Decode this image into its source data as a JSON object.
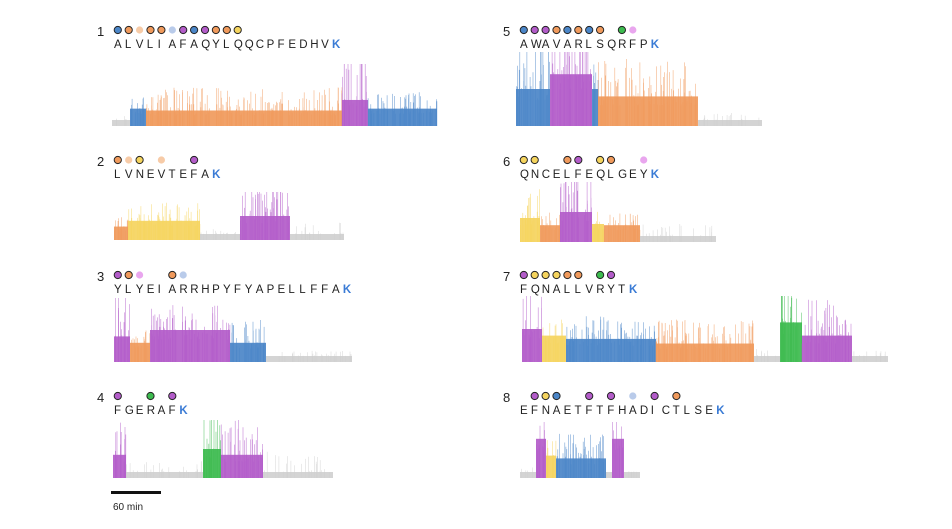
{
  "colors": {
    "orange": "#f09a5c",
    "purple": "#b35cc9",
    "blue": "#4b86c8",
    "yellow": "#f5d45e",
    "green": "#3dbb4f",
    "gray": "#cfcfcf",
    "light_purple": "#e9a6ee",
    "light_blue": "#b9cbea",
    "light_orange": "#f7cba7",
    "lys": "#3a7bd5"
  },
  "scale_bar": {
    "label": "60 min"
  },
  "chart_data": [
    {
      "type": "area",
      "panel": "1",
      "sequence": [
        "A",
        "L",
        "V",
        "L",
        "I",
        "A",
        "F",
        "A",
        "Q",
        "Y",
        "L",
        "Q",
        "Q",
        "C",
        "P",
        "F",
        "E",
        "D",
        "H",
        "V",
        "K"
      ],
      "markers": [
        {
          "residue": 0,
          "color": "blue",
          "outline": true
        },
        {
          "residue": 1,
          "color": "orange",
          "outline": true
        },
        {
          "residue": 2,
          "color": "light_orange",
          "outline": false
        },
        {
          "residue": 3,
          "color": "orange",
          "outline": true
        },
        {
          "residue": 4,
          "color": "orange",
          "outline": true
        },
        {
          "residue": 5,
          "color": "light_blue",
          "outline": false
        },
        {
          "residue": 6,
          "color": "purple",
          "outline": true
        },
        {
          "residue": 7,
          "color": "blue",
          "outline": true
        },
        {
          "residue": 8,
          "color": "purple",
          "outline": true
        },
        {
          "residue": 9,
          "color": "orange",
          "outline": true
        },
        {
          "residue": 10,
          "color": "orange",
          "outline": true
        },
        {
          "residue": 11,
          "color": "yellow",
          "outline": true
        }
      ],
      "segments": [
        {
          "start": 0,
          "end": 18,
          "color": "gray",
          "level": 0.12,
          "spikes": 0.1
        },
        {
          "start": 18,
          "end": 34,
          "color": "blue",
          "level": 0.28,
          "spikes": 0.3
        },
        {
          "start": 34,
          "end": 230,
          "color": "orange",
          "level": 0.25,
          "spikes": 0.45
        },
        {
          "start": 230,
          "end": 256,
          "color": "purple",
          "level": 0.42,
          "spikes": 1.0
        },
        {
          "start": 256,
          "end": 325,
          "color": "blue",
          "level": 0.28,
          "spikes": 0.35
        }
      ]
    },
    {
      "type": "area",
      "panel": "2",
      "sequence": [
        "L",
        "V",
        "N",
        "E",
        "V",
        "T",
        "E",
        "F",
        "A",
        "K"
      ],
      "markers": [
        {
          "residue": 0,
          "color": "orange",
          "outline": true
        },
        {
          "residue": 1,
          "color": "light_orange",
          "outline": false
        },
        {
          "residue": 2,
          "color": "yellow",
          "outline": true
        },
        {
          "residue": 4,
          "color": "light_orange",
          "outline": false
        },
        {
          "residue": 7,
          "color": "purple",
          "outline": true
        }
      ],
      "segments": [
        {
          "start": 0,
          "end": 14,
          "color": "orange",
          "level": 0.28,
          "spikes": 0.3
        },
        {
          "start": 14,
          "end": 86,
          "color": "yellow",
          "level": 0.4,
          "spikes": 0.5
        },
        {
          "start": 86,
          "end": 126,
          "color": "gray",
          "level": 0.12,
          "spikes": 0.1
        },
        {
          "start": 126,
          "end": 176,
          "color": "purple",
          "level": 0.5,
          "spikes": 1.0
        },
        {
          "start": 176,
          "end": 230,
          "color": "gray",
          "level": 0.12,
          "spikes": 0.25
        }
      ]
    },
    {
      "type": "area",
      "panel": "3",
      "sequence": [
        "Y",
        "L",
        "Y",
        "E",
        "I",
        "A",
        "R",
        "R",
        "H",
        "P",
        "Y",
        "F",
        "Y",
        "A",
        "P",
        "E",
        "L",
        "L",
        "F",
        "F",
        "A",
        "K"
      ],
      "markers": [
        {
          "residue": 0,
          "color": "purple",
          "outline": true
        },
        {
          "residue": 1,
          "color": "orange",
          "outline": true
        },
        {
          "residue": 2,
          "color": "light_purple",
          "outline": false
        },
        {
          "residue": 5,
          "color": "orange",
          "outline": true
        },
        {
          "residue": 6,
          "color": "light_blue",
          "outline": false
        }
      ],
      "segments": [
        {
          "start": 0,
          "end": 16,
          "color": "purple",
          "level": 0.4,
          "spikes": 1.0
        },
        {
          "start": 16,
          "end": 36,
          "color": "orange",
          "level": 0.3,
          "spikes": 0.3
        },
        {
          "start": 36,
          "end": 116,
          "color": "purple",
          "level": 0.5,
          "spikes": 0.55
        },
        {
          "start": 116,
          "end": 152,
          "color": "blue",
          "level": 0.3,
          "spikes": 0.45
        },
        {
          "start": 152,
          "end": 238,
          "color": "gray",
          "level": 0.1,
          "spikes": 0.08
        }
      ]
    },
    {
      "type": "area",
      "panel": "4",
      "sequence": [
        "F",
        "G",
        "E",
        "R",
        "A",
        "F",
        "K"
      ],
      "markers": [
        {
          "residue": 0,
          "color": "purple",
          "outline": true
        },
        {
          "residue": 3,
          "color": "green",
          "outline": true
        },
        {
          "residue": 5,
          "color": "purple",
          "outline": true
        }
      ],
      "segments": [
        {
          "start": 0,
          "end": 13,
          "color": "purple",
          "level": 0.4,
          "spikes": 0.7
        },
        {
          "start": 13,
          "end": 90,
          "color": "gray",
          "level": 0.1,
          "spikes": 0.2
        },
        {
          "start": 90,
          "end": 108,
          "color": "green",
          "level": 0.5,
          "spikes": 1.0
        },
        {
          "start": 108,
          "end": 150,
          "color": "purple",
          "level": 0.4,
          "spikes": 0.75
        },
        {
          "start": 150,
          "end": 220,
          "color": "gray",
          "level": 0.1,
          "spikes": 0.35
        }
      ]
    },
    {
      "type": "area",
      "panel": "5",
      "sequence": [
        "A",
        "W",
        "A",
        "V",
        "A",
        "R",
        "L",
        "S",
        "Q",
        "R",
        "F",
        "P",
        "K"
      ],
      "markers": [
        {
          "residue": 0,
          "color": "blue",
          "outline": true
        },
        {
          "residue": 1,
          "color": "purple",
          "outline": true
        },
        {
          "residue": 2,
          "color": "purple",
          "outline": true
        },
        {
          "residue": 3,
          "color": "orange",
          "outline": true
        },
        {
          "residue": 4,
          "color": "blue",
          "outline": true
        },
        {
          "residue": 5,
          "color": "orange",
          "outline": true
        },
        {
          "residue": 6,
          "color": "blue",
          "outline": true
        },
        {
          "residue": 7,
          "color": "orange",
          "outline": true
        },
        {
          "residue": 9,
          "color": "green",
          "outline": true
        },
        {
          "residue": 10,
          "color": "light_purple",
          "outline": false
        }
      ],
      "segments": [
        {
          "start": 0,
          "end": 34,
          "color": "blue",
          "level": 0.5,
          "spikes": 1.0
        },
        {
          "start": 34,
          "end": 76,
          "color": "purple",
          "level": 0.7,
          "spikes": 1.0
        },
        {
          "start": 76,
          "end": 82,
          "color": "blue",
          "level": 0.5,
          "spikes": 0.6
        },
        {
          "start": 82,
          "end": 182,
          "color": "orange",
          "level": 0.4,
          "spikes": 0.65
        },
        {
          "start": 182,
          "end": 246,
          "color": "gray",
          "level": 0.14,
          "spikes": 0.1
        }
      ]
    },
    {
      "type": "area",
      "panel": "6",
      "sequence": [
        "Q",
        "N",
        "C",
        "E",
        "L",
        "F",
        "E",
        "Q",
        "L",
        "G",
        "E",
        "Y",
        "K"
      ],
      "markers": [
        {
          "residue": 0,
          "color": "yellow",
          "outline": true
        },
        {
          "residue": 1,
          "color": "yellow",
          "outline": true
        },
        {
          "residue": 4,
          "color": "orange",
          "outline": true
        },
        {
          "residue": 5,
          "color": "purple",
          "outline": true
        },
        {
          "residue": 7,
          "color": "yellow",
          "outline": true
        },
        {
          "residue": 8,
          "color": "orange",
          "outline": true
        },
        {
          "residue": 11,
          "color": "light_purple",
          "outline": false
        }
      ],
      "segments": [
        {
          "start": 0,
          "end": 20,
          "color": "yellow",
          "level": 0.4,
          "spikes": 0.6
        },
        {
          "start": 20,
          "end": 40,
          "color": "orange",
          "level": 0.28,
          "spikes": 0.3
        },
        {
          "start": 40,
          "end": 72,
          "color": "purple",
          "level": 0.5,
          "spikes": 1.0
        },
        {
          "start": 72,
          "end": 84,
          "color": "yellow",
          "level": 0.3,
          "spikes": 0.3
        },
        {
          "start": 84,
          "end": 120,
          "color": "orange",
          "level": 0.28,
          "spikes": 0.3
        },
        {
          "start": 120,
          "end": 196,
          "color": "gray",
          "level": 0.12,
          "spikes": 0.2
        }
      ]
    },
    {
      "type": "area",
      "panel": "7",
      "sequence": [
        "F",
        "Q",
        "N",
        "A",
        "L",
        "L",
        "V",
        "R",
        "Y",
        "T",
        "K"
      ],
      "markers": [
        {
          "residue": 0,
          "color": "purple",
          "outline": true
        },
        {
          "residue": 1,
          "color": "yellow",
          "outline": true
        },
        {
          "residue": 2,
          "color": "yellow",
          "outline": true
        },
        {
          "residue": 3,
          "color": "yellow",
          "outline": true
        },
        {
          "residue": 4,
          "color": "orange",
          "outline": true
        },
        {
          "residue": 5,
          "color": "orange",
          "outline": true
        },
        {
          "residue": 7,
          "color": "green",
          "outline": true
        },
        {
          "residue": 8,
          "color": "purple",
          "outline": true
        }
      ],
      "segments": [
        {
          "start": 0,
          "end": 20,
          "color": "purple",
          "level": 0.5,
          "spikes": 0.75
        },
        {
          "start": 20,
          "end": 44,
          "color": "yellow",
          "level": 0.4,
          "spikes": 0.4
        },
        {
          "start": 44,
          "end": 134,
          "color": "blue",
          "level": 0.35,
          "spikes": 0.45
        },
        {
          "start": 134,
          "end": 232,
          "color": "orange",
          "level": 0.28,
          "spikes": 0.45
        },
        {
          "start": 232,
          "end": 258,
          "color": "gray",
          "level": 0.12,
          "spikes": 0.15
        },
        {
          "start": 258,
          "end": 280,
          "color": "green",
          "level": 0.6,
          "spikes": 1.0
        },
        {
          "start": 280,
          "end": 330,
          "color": "purple",
          "level": 0.4,
          "spikes": 0.7
        },
        {
          "start": 330,
          "end": 366,
          "color": "gray",
          "level": 0.12,
          "spikes": 0.1
        }
      ]
    },
    {
      "type": "area",
      "panel": "8",
      "sequence": [
        "E",
        "F",
        "N",
        "A",
        "E",
        "T",
        "F",
        "T",
        "F",
        "H",
        "A",
        "D",
        "I",
        "C",
        "T",
        "L",
        "S",
        "E",
        "K"
      ],
      "markers": [
        {
          "residue": 1,
          "color": "purple",
          "outline": true
        },
        {
          "residue": 2,
          "color": "yellow",
          "outline": true
        },
        {
          "residue": 3,
          "color": "blue",
          "outline": true
        },
        {
          "residue": 6,
          "color": "purple",
          "outline": true
        },
        {
          "residue": 8,
          "color": "purple",
          "outline": true
        },
        {
          "residue": 10,
          "color": "light_blue",
          "outline": false
        },
        {
          "residue": 12,
          "color": "purple",
          "outline": true
        },
        {
          "residue": 14,
          "color": "orange",
          "outline": true
        }
      ],
      "segments": [
        {
          "start": 0,
          "end": 16,
          "color": "gray",
          "level": 0.12,
          "spikes": 0.1
        },
        {
          "start": 16,
          "end": 26,
          "color": "purple",
          "level": 0.7,
          "spikes": 0.85
        },
        {
          "start": 26,
          "end": 36,
          "color": "yellow",
          "level": 0.4,
          "spikes": 0.4
        },
        {
          "start": 36,
          "end": 86,
          "color": "blue",
          "level": 0.35,
          "spikes": 0.55
        },
        {
          "start": 86,
          "end": 92,
          "color": "gray",
          "level": 0.12,
          "spikes": 0.1
        },
        {
          "start": 92,
          "end": 104,
          "color": "purple",
          "level": 0.7,
          "spikes": 0.85
        },
        {
          "start": 104,
          "end": 120,
          "color": "gray",
          "level": 0.12,
          "spikes": 0.1
        }
      ]
    }
  ]
}
